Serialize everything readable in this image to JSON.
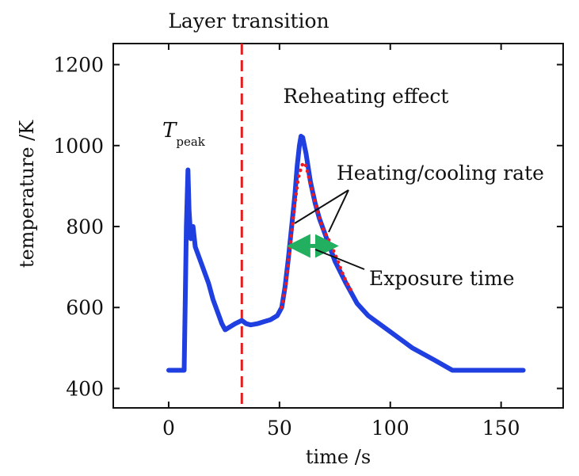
{
  "chart_data": {
    "type": "line",
    "xlabel": "time /s",
    "ylabel": "temperature /K",
    "xlim": [
      -25,
      178
    ],
    "ylim": [
      352,
      1252
    ],
    "x_ticks": [
      0,
      50,
      100,
      150
    ],
    "y_ticks": [
      400,
      600,
      800,
      1000,
      1200
    ],
    "grid": false,
    "series": [
      {
        "color": "#1f3fe0",
        "x": [
          0,
          7,
          7.5,
          8,
          8.7,
          9.2,
          10,
          11,
          12,
          14,
          16,
          18,
          20,
          22,
          24,
          25.5,
          27,
          30,
          33,
          35,
          37,
          40,
          43,
          46,
          49,
          51,
          52.5,
          54,
          55.5,
          57,
          58,
          59,
          59.7,
          60.5,
          62,
          64,
          66,
          68,
          70,
          72,
          75,
          80,
          85,
          90,
          100,
          110,
          120,
          128,
          140,
          150,
          160
        ],
        "y": [
          445,
          445,
          620,
          800,
          940,
          840,
          770,
          800,
          750,
          720,
          690,
          660,
          620,
          590,
          560,
          545,
          550,
          560,
          568,
          560,
          557,
          560,
          565,
          570,
          580,
          600,
          650,
          720,
          800,
          880,
          950,
          1000,
          1023,
          1020,
          980,
          910,
          860,
          820,
          790,
          760,
          715,
          660,
          610,
          580,
          540,
          500,
          470,
          445,
          445,
          445,
          445
        ]
      }
    ],
    "fit_line": {
      "color": "#e81c24",
      "x": [
        51,
        53,
        55,
        57,
        58.5,
        60,
        61,
        62,
        64,
        66,
        68,
        70,
        72,
        74,
        76,
        78,
        80,
        83
      ],
      "y": [
        600,
        660,
        760,
        860,
        920,
        950,
        958,
        950,
        905,
        860,
        820,
        790,
        770,
        745,
        720,
        690,
        665,
        635
      ]
    },
    "vertical_line": {
      "x": 33,
      "color": "#e02020",
      "style": "dashed"
    },
    "exposure_arrow": {
      "x_start": 55,
      "x_end": 75,
      "y": 752,
      "color": "#22b060"
    },
    "annotations": {
      "layer_transition": "Layer transition",
      "t_peak_main": "T",
      "t_peak_sub": "peak",
      "reheating": "Reheating effect",
      "rate": "Heating/cooling rate",
      "exposure": "Exposure time"
    }
  }
}
